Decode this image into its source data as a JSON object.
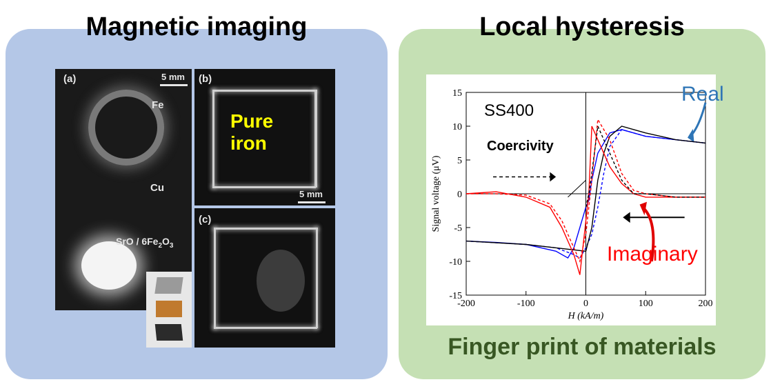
{
  "left": {
    "title": "Magnetic imaging",
    "sub_a_label": "(a)",
    "sub_b_label": "(b)",
    "sub_c_label": "(c)",
    "scale_a": "5 mm",
    "scale_b": "5 mm",
    "fe_label": "Fe",
    "cu_label": "Cu",
    "sro_label": "SrO / 6Fe",
    "sro_sub1": "2",
    "sro_mid": "O",
    "sro_sub2": "3",
    "pure_line1": "Pure",
    "pure_line2": "iron"
  },
  "right": {
    "title": "Local hysteresis",
    "footer": "Finger print of materials",
    "real_label": "Real",
    "imaginary_label": "Imaginary"
  },
  "chart_data": {
    "type": "line",
    "title": "SS400",
    "annotation": "Coercivity",
    "xlabel": "H (kA/m)",
    "ylabel": "Signal voltage (μV)",
    "xlim": [
      -200,
      200
    ],
    "ylim": [
      -15,
      15
    ],
    "xticks": [
      -200,
      -100,
      0,
      100,
      200
    ],
    "yticks": [
      -15,
      -10,
      -5,
      0,
      5,
      10,
      15
    ],
    "series": [
      {
        "color": "#0000ff",
        "style": "solid",
        "x": [
          -200,
          -150,
          -100,
          -50,
          -30,
          -20,
          -10,
          0,
          5,
          10,
          20,
          40,
          60,
          80,
          100,
          150,
          200
        ],
        "y": [
          -7,
          -7.2,
          -7.5,
          -8.5,
          -9.5,
          -8,
          -5,
          -2,
          -1,
          2,
          6,
          9,
          9.5,
          9,
          8.5,
          8,
          7.5
        ]
      },
      {
        "color": "#0000ff",
        "style": "dashed",
        "x": [
          -200,
          -100,
          -50,
          -20,
          -10,
          0,
          10,
          20,
          30,
          40,
          60,
          80,
          100,
          150,
          200
        ],
        "y": [
          -7,
          -7.5,
          -8,
          -9,
          -9.5,
          -8,
          -6,
          -2,
          3,
          7,
          9.5,
          9,
          8.5,
          8,
          7.5
        ]
      },
      {
        "color": "#000000",
        "style": "solid",
        "x": [
          -200,
          -100,
          -50,
          0,
          10,
          20,
          30,
          40,
          60,
          80,
          100,
          150,
          200
        ],
        "y": [
          -7,
          -7.5,
          -8,
          -8.5,
          -5,
          2,
          6,
          8.5,
          10,
          9.5,
          9,
          8,
          7.5
        ]
      },
      {
        "color": "#ff0000",
        "style": "solid",
        "x": [
          -200,
          -150,
          -100,
          -60,
          -40,
          -20,
          -10,
          0,
          5,
          10,
          20,
          30,
          40,
          60,
          80,
          100,
          150,
          200
        ],
        "y": [
          0,
          0.3,
          -0.5,
          -2,
          -5,
          -9,
          -12,
          -4,
          0,
          10,
          8,
          6,
          4,
          1.5,
          0,
          -0.5,
          -0.5,
          -0.5
        ]
      },
      {
        "color": "#ff0000",
        "style": "dashed",
        "x": [
          -200,
          -150,
          -100,
          -60,
          -40,
          -20,
          -10,
          0,
          5,
          10,
          20,
          40,
          60,
          80,
          100,
          150,
          200
        ],
        "y": [
          0,
          0,
          -0.2,
          -1.5,
          -4,
          -8,
          -10,
          -6,
          -2,
          2,
          11,
          8,
          3,
          0.5,
          0,
          -0.5,
          -0.5
        ]
      },
      {
        "color": "#000000",
        "style": "dashed",
        "x": [
          0,
          5,
          10,
          20,
          40,
          60,
          80,
          100,
          150,
          200
        ],
        "y": [
          -2,
          0,
          3,
          10,
          6,
          2,
          0,
          0,
          -0.5,
          -0.5
        ]
      }
    ]
  }
}
